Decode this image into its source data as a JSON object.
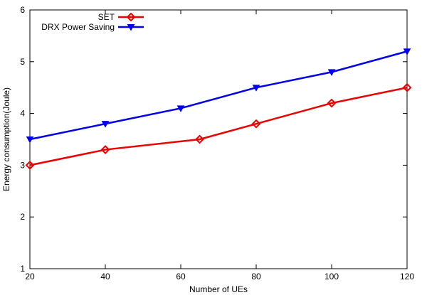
{
  "chart_data": {
    "type": "line",
    "title": "",
    "xlabel": "Number of UEs",
    "ylabel": "Energy consumption(Joule)",
    "xlim": [
      20,
      120
    ],
    "ylim": [
      1,
      6
    ],
    "xticks": [
      20,
      40,
      60,
      80,
      100,
      120
    ],
    "yticks": [
      1,
      2,
      3,
      4,
      5,
      6
    ],
    "grid": false,
    "legend_position": "top-left",
    "series": [
      {
        "name": "SET",
        "color": "#ee0000",
        "marker": "diamond",
        "x": [
          20,
          40,
          65,
          80,
          100,
          120
        ],
        "y": [
          3.0,
          3.3,
          3.5,
          3.8,
          4.2,
          4.5
        ]
      },
      {
        "name": "DRX Power Saving",
        "color": "#0000ee",
        "marker": "triangle-down",
        "x": [
          20,
          40,
          60,
          80,
          100,
          120
        ],
        "y": [
          3.5,
          3.8,
          4.1,
          4.5,
          4.8,
          5.2
        ]
      }
    ]
  }
}
